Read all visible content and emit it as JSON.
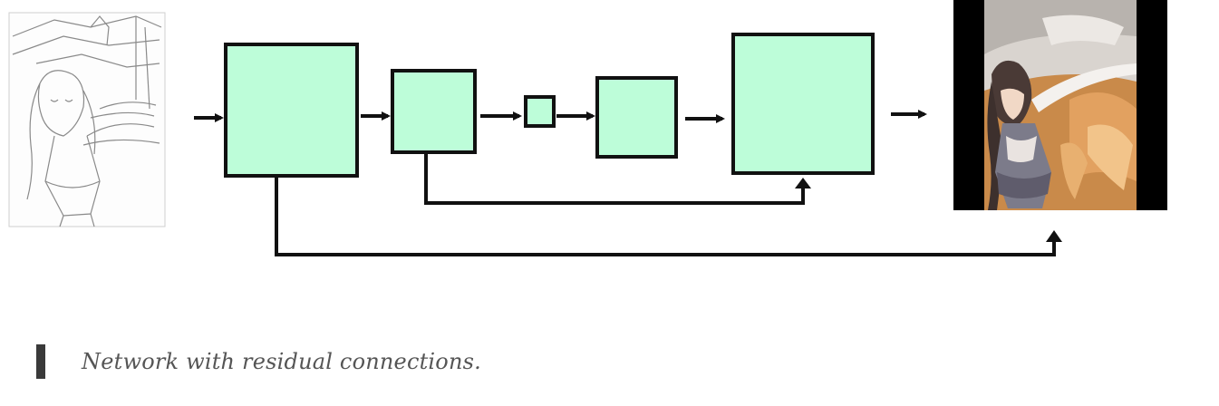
{
  "caption": {
    "text": "Network with residual connections."
  },
  "colors": {
    "block_fill": "#bdfdd9",
    "stroke": "#111111",
    "caption_text": "#555555",
    "caption_bar": "#3a3a3a"
  },
  "images": {
    "input": "pencil line-art sketch of an anime girl (input)",
    "output": "colorized anime girl illustration in orange/brown tones (output)"
  }
}
